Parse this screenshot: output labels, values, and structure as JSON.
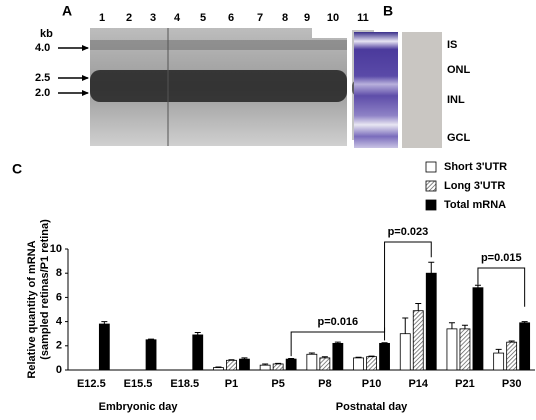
{
  "panel_a": {
    "letter": "A",
    "unit": "kb",
    "lanes": [
      "1",
      "2",
      "3",
      "4",
      "5",
      "6",
      "7",
      "8",
      "9",
      "10",
      "11"
    ],
    "sizes": [
      "4.0",
      "2.5",
      "2.0"
    ]
  },
  "panel_b": {
    "letter": "B",
    "layers": [
      "IS",
      "ONL",
      "INL",
      "GCL"
    ]
  },
  "chart_data": {
    "type": "bar",
    "letter": "C",
    "ylabel": [
      "Relative quantity of mRNA",
      "(sampled retinas/P1 retina)"
    ],
    "categories": [
      "E12.5",
      "E15.5",
      "E18.5",
      "P1",
      "P5",
      "P8",
      "P10",
      "P14",
      "P21",
      "P30"
    ],
    "group_labels": [
      "Embryonic day",
      "Postnatal day"
    ],
    "series": [
      {
        "name": "Short 3'UTR",
        "color": "#ffffff",
        "values": [
          null,
          null,
          null,
          0.2,
          0.4,
          1.3,
          1.0,
          3.0,
          3.4,
          1.4
        ],
        "errors": [
          null,
          null,
          null,
          0.05,
          0.1,
          0.1,
          0.05,
          1.3,
          0.5,
          0.3
        ]
      },
      {
        "name": "Long 3'UTR",
        "color": "#ffffff",
        "hatch": true,
        "values": [
          null,
          null,
          null,
          0.8,
          0.5,
          1.0,
          1.1,
          4.9,
          3.4,
          2.3
        ],
        "errors": [
          null,
          null,
          null,
          0.05,
          0.05,
          0.1,
          0.05,
          0.6,
          0.3,
          0.1
        ]
      },
      {
        "name": "Total mRNA",
        "color": "#000000",
        "values": [
          3.8,
          2.5,
          2.9,
          0.9,
          0.9,
          2.2,
          2.2,
          8.0,
          6.8,
          3.9
        ],
        "errors": [
          0.2,
          0.05,
          0.2,
          0.1,
          0.05,
          0.1,
          0.05,
          0.9,
          0.2,
          0.1
        ]
      }
    ],
    "ylim": [
      0,
      10
    ],
    "yticks": [
      0,
      2,
      4,
      6,
      8,
      10
    ],
    "annotations": [
      "p=0.016",
      "p=0.023",
      "p=0.015"
    ]
  }
}
